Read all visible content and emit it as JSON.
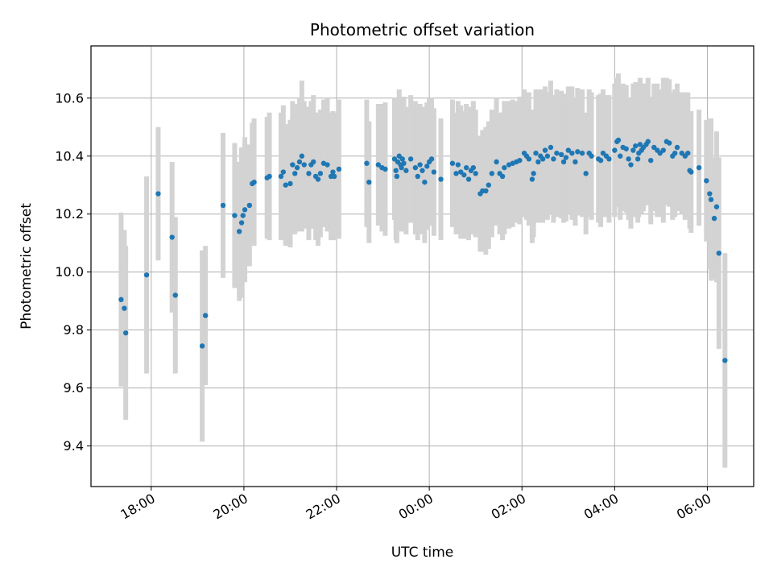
{
  "chart_data": {
    "type": "scatter",
    "title": "Photometric offset variation",
    "xlabel": "UTC time",
    "ylabel": "Photometric offset",
    "x_unit": "hours since 00:00 UTC",
    "xlim": [
      -7.3,
      7.0
    ],
    "ylim": [
      9.26,
      10.78
    ],
    "grid": true,
    "x_ticks": [
      {
        "value": -6,
        "label": "18:00"
      },
      {
        "value": -4,
        "label": "20:00"
      },
      {
        "value": -2,
        "label": "22:00"
      },
      {
        "value": 0,
        "label": "00:00"
      },
      {
        "value": 2,
        "label": "02:00"
      },
      {
        "value": 4,
        "label": "04:00"
      },
      {
        "value": 6,
        "label": "06:00"
      }
    ],
    "y_ticks": [
      {
        "value": 9.4,
        "label": "9.4"
      },
      {
        "value": 9.6,
        "label": "9.6"
      },
      {
        "value": 9.8,
        "label": "9.8"
      },
      {
        "value": 10.0,
        "label": "10.0"
      },
      {
        "value": 10.2,
        "label": "10.2"
      },
      {
        "value": 10.4,
        "label": "10.4"
      },
      {
        "value": 10.6,
        "label": "10.6"
      }
    ],
    "series": [
      {
        "name": "Photometric offset",
        "marker_color": "#1f77b4",
        "errorbar_color": "#d3d3d3",
        "points": [
          [
            -6.65,
            9.905,
            0.3
          ],
          [
            -6.58,
            9.875,
            0.27
          ],
          [
            -6.55,
            9.79,
            0.3
          ],
          [
            -6.1,
            9.99,
            0.34
          ],
          [
            -5.85,
            10.27,
            0.23
          ],
          [
            -5.55,
            10.12,
            0.26
          ],
          [
            -5.48,
            9.92,
            0.27
          ],
          [
            -4.9,
            9.745,
            0.33
          ],
          [
            -4.83,
            9.85,
            0.24
          ],
          [
            -4.45,
            10.23,
            0.25
          ],
          [
            -4.2,
            10.195,
            0.25
          ],
          [
            -4.1,
            10.14,
            0.24
          ],
          [
            -4.05,
            10.17,
            0.26
          ],
          [
            -4.02,
            10.195,
            0.23
          ],
          [
            -3.98,
            10.215,
            0.25
          ],
          [
            -3.88,
            10.23,
            0.21
          ],
          [
            -3.82,
            10.305,
            0.21
          ],
          [
            -3.78,
            10.31,
            0.22
          ],
          [
            -3.5,
            10.325,
            0.21
          ],
          [
            -3.45,
            10.33,
            0.22
          ],
          [
            -3.2,
            10.33,
            0.22
          ],
          [
            -3.15,
            10.345,
            0.23
          ],
          [
            -3.1,
            10.3,
            0.21
          ],
          [
            -3.0,
            10.305,
            0.22
          ],
          [
            -2.95,
            10.37,
            0.22
          ],
          [
            -2.9,
            10.34,
            0.21
          ],
          [
            -2.85,
            10.36,
            0.22
          ],
          [
            -2.8,
            10.38,
            0.22
          ],
          [
            -2.75,
            10.4,
            0.26
          ],
          [
            -2.7,
            10.37,
            0.22
          ],
          [
            -2.6,
            10.34,
            0.23
          ],
          [
            -2.55,
            10.37,
            0.22
          ],
          [
            -2.5,
            10.38,
            0.23
          ],
          [
            -2.45,
            10.33,
            0.22
          ],
          [
            -2.4,
            10.32,
            0.23
          ],
          [
            -2.35,
            10.34,
            0.22
          ],
          [
            -2.28,
            10.375,
            0.22
          ],
          [
            -2.2,
            10.37,
            0.23
          ],
          [
            -2.12,
            10.33,
            0.22
          ],
          [
            -2.08,
            10.345,
            0.21
          ],
          [
            -2.05,
            10.33,
            0.22
          ],
          [
            -1.95,
            10.355,
            0.24
          ],
          [
            -1.35,
            10.375,
            0.22
          ],
          [
            -1.3,
            10.31,
            0.21
          ],
          [
            -1.1,
            10.37,
            0.21
          ],
          [
            -1.02,
            10.36,
            0.22
          ],
          [
            -0.95,
            10.355,
            0.23
          ],
          [
            -0.75,
            10.39,
            0.21
          ],
          [
            -0.72,
            10.35,
            0.24
          ],
          [
            -0.7,
            10.33,
            0.23
          ],
          [
            -0.68,
            10.38,
            0.22
          ],
          [
            -0.65,
            10.4,
            0.23
          ],
          [
            -0.62,
            10.37,
            0.22
          ],
          [
            -0.6,
            10.36,
            0.22
          ],
          [
            -0.58,
            10.39,
            0.21
          ],
          [
            -0.55,
            10.375,
            0.23
          ],
          [
            -0.5,
            10.35,
            0.22
          ],
          [
            -0.4,
            10.39,
            0.22
          ],
          [
            -0.3,
            10.36,
            0.23
          ],
          [
            -0.25,
            10.33,
            0.22
          ],
          [
            -0.2,
            10.37,
            0.21
          ],
          [
            -0.15,
            10.35,
            0.22
          ],
          [
            -0.1,
            10.31,
            0.21
          ],
          [
            -0.05,
            10.365,
            0.22
          ],
          [
            0.0,
            10.38,
            0.22
          ],
          [
            0.05,
            10.39,
            0.21
          ],
          [
            0.1,
            10.345,
            0.22
          ],
          [
            0.25,
            10.32,
            0.21
          ],
          [
            0.5,
            10.375,
            0.22
          ],
          [
            0.58,
            10.34,
            0.21
          ],
          [
            0.62,
            10.37,
            0.22
          ],
          [
            0.68,
            10.345,
            0.23
          ],
          [
            0.75,
            10.335,
            0.22
          ],
          [
            0.8,
            10.36,
            0.22
          ],
          [
            0.85,
            10.32,
            0.21
          ],
          [
            0.9,
            10.35,
            0.22
          ],
          [
            0.95,
            10.36,
            0.23
          ],
          [
            1.0,
            10.34,
            0.22
          ],
          [
            1.1,
            10.27,
            0.2
          ],
          [
            1.15,
            10.28,
            0.21
          ],
          [
            1.22,
            10.28,
            0.22
          ],
          [
            1.28,
            10.3,
            0.22
          ],
          [
            1.35,
            10.34,
            0.22
          ],
          [
            1.45,
            10.38,
            0.22
          ],
          [
            1.52,
            10.34,
            0.21
          ],
          [
            1.58,
            10.33,
            0.22
          ],
          [
            1.62,
            10.36,
            0.23
          ],
          [
            1.72,
            10.37,
            0.22
          ],
          [
            1.8,
            10.375,
            0.22
          ],
          [
            1.88,
            10.38,
            0.21
          ],
          [
            1.95,
            10.385,
            0.22
          ],
          [
            2.05,
            10.41,
            0.22
          ],
          [
            2.1,
            10.4,
            0.22
          ],
          [
            2.15,
            10.39,
            0.23
          ],
          [
            2.22,
            10.32,
            0.22
          ],
          [
            2.25,
            10.34,
            0.22
          ],
          [
            2.3,
            10.41,
            0.22
          ],
          [
            2.35,
            10.38,
            0.21
          ],
          [
            2.4,
            10.4,
            0.23
          ],
          [
            2.45,
            10.39,
            0.22
          ],
          [
            2.5,
            10.42,
            0.22
          ],
          [
            2.55,
            10.4,
            0.22
          ],
          [
            2.62,
            10.43,
            0.23
          ],
          [
            2.68,
            10.39,
            0.22
          ],
          [
            2.75,
            10.41,
            0.22
          ],
          [
            2.85,
            10.405,
            0.22
          ],
          [
            2.9,
            10.38,
            0.21
          ],
          [
            2.95,
            10.395,
            0.22
          ],
          [
            3.0,
            10.42,
            0.22
          ],
          [
            3.08,
            10.41,
            0.23
          ],
          [
            3.15,
            10.38,
            0.22
          ],
          [
            3.2,
            10.415,
            0.22
          ],
          [
            3.3,
            10.41,
            0.22
          ],
          [
            3.38,
            10.34,
            0.21
          ],
          [
            3.45,
            10.41,
            0.22
          ],
          [
            3.5,
            10.4,
            0.22
          ],
          [
            3.65,
            10.39,
            0.22
          ],
          [
            3.7,
            10.385,
            0.23
          ],
          [
            3.75,
            10.41,
            0.22
          ],
          [
            3.82,
            10.4,
            0.21
          ],
          [
            3.88,
            10.39,
            0.22
          ],
          [
            4.0,
            10.42,
            0.23
          ],
          [
            4.05,
            10.45,
            0.22
          ],
          [
            4.08,
            10.455,
            0.23
          ],
          [
            4.12,
            10.4,
            0.22
          ],
          [
            4.18,
            10.43,
            0.22
          ],
          [
            4.25,
            10.425,
            0.22
          ],
          [
            4.3,
            10.39,
            0.21
          ],
          [
            4.35,
            10.37,
            0.22
          ],
          [
            4.4,
            10.42,
            0.23
          ],
          [
            4.45,
            10.435,
            0.22
          ],
          [
            4.5,
            10.39,
            0.22
          ],
          [
            4.52,
            10.41,
            0.22
          ],
          [
            4.55,
            10.44,
            0.23
          ],
          [
            4.58,
            10.42,
            0.22
          ],
          [
            4.62,
            10.43,
            0.22
          ],
          [
            4.68,
            10.44,
            0.21
          ],
          [
            4.72,
            10.45,
            0.22
          ],
          [
            4.78,
            10.385,
            0.22
          ],
          [
            4.85,
            10.43,
            0.22
          ],
          [
            4.92,
            10.42,
            0.23
          ],
          [
            4.98,
            10.41,
            0.22
          ],
          [
            5.05,
            10.42,
            0.25
          ],
          [
            5.12,
            10.45,
            0.22
          ],
          [
            5.18,
            10.445,
            0.22
          ],
          [
            5.25,
            10.4,
            0.22
          ],
          [
            5.3,
            10.41,
            0.22
          ],
          [
            5.35,
            10.43,
            0.22
          ],
          [
            5.45,
            10.41,
            0.21
          ],
          [
            5.52,
            10.4,
            0.22
          ],
          [
            5.58,
            10.41,
            0.21
          ],
          [
            5.62,
            10.35,
            0.2
          ],
          [
            5.65,
            10.345,
            0.21
          ],
          [
            5.82,
            10.36,
            0.2
          ],
          [
            5.98,
            10.315,
            0.21
          ],
          [
            6.05,
            10.27,
            0.26
          ],
          [
            6.08,
            10.25,
            0.28
          ],
          [
            6.15,
            10.185,
            0.21
          ],
          [
            6.2,
            10.225,
            0.26
          ],
          [
            6.25,
            10.065,
            0.33
          ],
          [
            6.38,
            9.695,
            0.37
          ]
        ]
      }
    ]
  }
}
